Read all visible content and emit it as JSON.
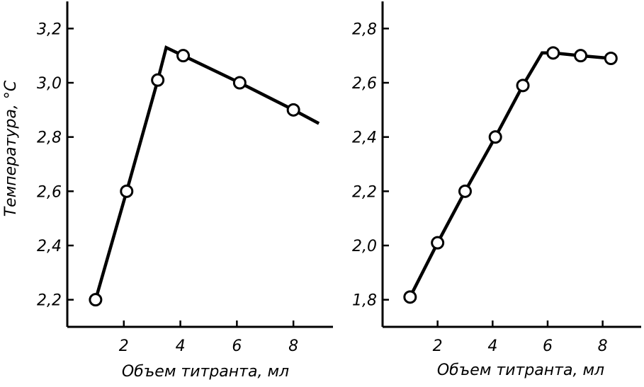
{
  "chart_data": [
    {
      "type": "line",
      "title": "",
      "xlabel": "Объем титранта, мл",
      "ylabel": "Температура, °С",
      "xlim": [
        0,
        9.4
      ],
      "ylim": [
        2.1,
        3.3
      ],
      "grid": false,
      "x_ticks": [
        2,
        4,
        6,
        8
      ],
      "x_tick_labels": [
        "2",
        "4",
        "6",
        "8"
      ],
      "y_ticks": [
        2.2,
        2.4,
        2.6,
        2.8,
        3.0,
        3.2
      ],
      "y_tick_labels": [
        "2,2",
        "2,4",
        "2,6",
        "2,8",
        "3,0",
        "3,2"
      ],
      "line": [
        {
          "x": 1.0,
          "y": 2.2
        },
        {
          "x": 2.1,
          "y": 2.6
        },
        {
          "x": 3.2,
          "y": 3.01
        },
        {
          "x": 3.5,
          "y": 3.13
        },
        {
          "x": 4.1,
          "y": 3.1
        },
        {
          "x": 6.1,
          "y": 3.0
        },
        {
          "x": 8.0,
          "y": 2.9
        },
        {
          "x": 8.9,
          "y": 2.85
        }
      ],
      "markers": [
        {
          "x": 1.0,
          "y": 2.2
        },
        {
          "x": 2.1,
          "y": 2.6
        },
        {
          "x": 3.2,
          "y": 3.01
        },
        {
          "x": 4.1,
          "y": 3.1
        },
        {
          "x": 6.1,
          "y": 3.0
        },
        {
          "x": 8.0,
          "y": 2.9
        }
      ]
    },
    {
      "type": "line",
      "title": "",
      "xlabel": "Объем титранта, мл",
      "ylabel": "",
      "xlim": [
        0,
        9.4
      ],
      "ylim": [
        1.7,
        2.9
      ],
      "grid": false,
      "x_ticks": [
        2,
        4,
        6,
        8
      ],
      "x_tick_labels": [
        "2",
        "4",
        "6",
        "8"
      ],
      "y_ticks": [
        1.8,
        2.0,
        2.2,
        2.4,
        2.6,
        2.8
      ],
      "y_tick_labels": [
        "1,8",
        "2,0",
        "2,2",
        "2,4",
        "2,6",
        "2,8"
      ],
      "line": [
        {
          "x": 1.0,
          "y": 1.81
        },
        {
          "x": 2.0,
          "y": 2.01
        },
        {
          "x": 3.0,
          "y": 2.2
        },
        {
          "x": 4.1,
          "y": 2.4
        },
        {
          "x": 5.1,
          "y": 2.59
        },
        {
          "x": 5.8,
          "y": 2.71
        },
        {
          "x": 6.2,
          "y": 2.71
        },
        {
          "x": 7.2,
          "y": 2.7
        },
        {
          "x": 8.3,
          "y": 2.69
        }
      ],
      "markers": [
        {
          "x": 1.0,
          "y": 1.81
        },
        {
          "x": 2.0,
          "y": 2.01
        },
        {
          "x": 3.0,
          "y": 2.2
        },
        {
          "x": 4.1,
          "y": 2.4
        },
        {
          "x": 5.1,
          "y": 2.59
        },
        {
          "x": 6.2,
          "y": 2.71
        },
        {
          "x": 7.2,
          "y": 2.7
        },
        {
          "x": 8.3,
          "y": 2.69
        }
      ]
    }
  ]
}
